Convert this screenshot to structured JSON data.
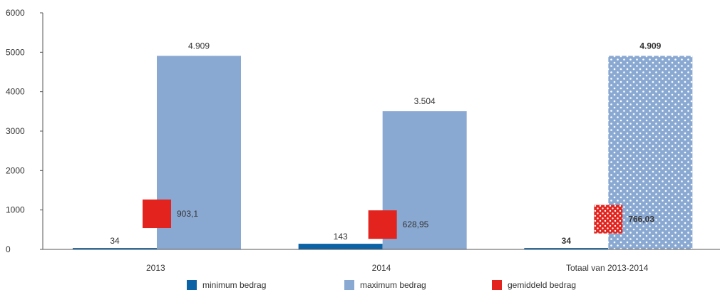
{
  "chart_data": {
    "type": "bar",
    "categories": [
      "2013",
      "2014",
      "Totaal van 2013-2014"
    ],
    "series": [
      {
        "name": "minimum bedrag",
        "values": [
          34,
          143,
          34
        ],
        "labels": [
          "34",
          "143",
          "34"
        ],
        "color": "#0b63a6"
      },
      {
        "name": "maximum bedrag",
        "values": [
          4909,
          3504,
          4909
        ],
        "labels": [
          "4.909",
          "3.504",
          "4.909"
        ],
        "color": "#8aa9d2"
      },
      {
        "name": "gemiddeld bedrag",
        "values": [
          903.1,
          628.95,
          766.03
        ],
        "labels": [
          "903,1",
          "628,95",
          "766,03"
        ],
        "color": "#e3231e",
        "marker": "square"
      }
    ],
    "yticks": [
      "0",
      "1000",
      "2000",
      "3000",
      "4000",
      "5000",
      "6000"
    ],
    "ylim": [
      0,
      6000
    ],
    "legend_position": "bottom",
    "total_category_patterned": true,
    "total_category_labels_bold": true
  }
}
